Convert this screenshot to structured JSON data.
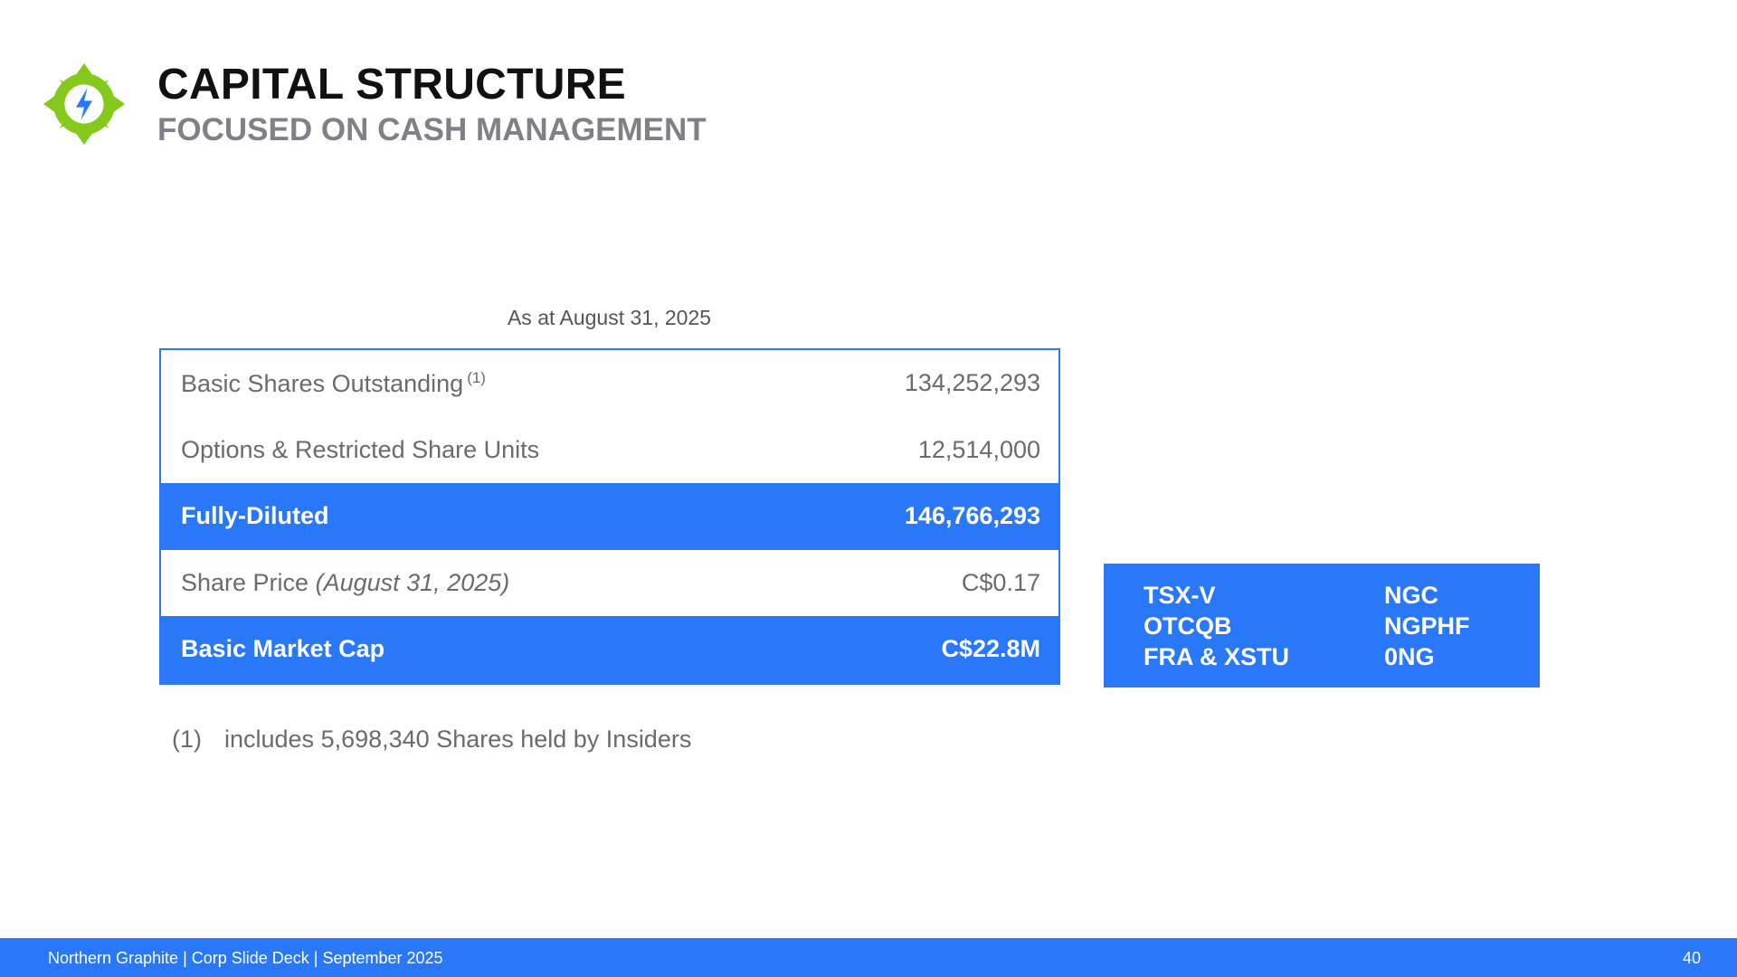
{
  "header": {
    "title": "CAPITAL STRUCTURE",
    "subtitle": "FOCUSED ON CASH MANAGEMENT",
    "logo_icon": "compass-lightning-logo",
    "accent_color": "#2a78fa",
    "logo_color": "#84c91c"
  },
  "table": {
    "caption": "As at August 31, 2025",
    "rows": [
      {
        "label": "Basic Shares Outstanding",
        "note": "(1)",
        "value": "134,252,293"
      },
      {
        "label": "Options & Restricted Share Units",
        "value": "12,514,000"
      },
      {
        "label": "Fully-Diluted",
        "value": "146,766,293"
      },
      {
        "label": "Share Price",
        "label_date": "(August 31, 2025)",
        "value": "C$0.17"
      },
      {
        "label": "Basic Market Cap",
        "value": "C$22.8M"
      }
    ]
  },
  "tickers": [
    {
      "exchange": "TSX-V",
      "symbol": "NGC"
    },
    {
      "exchange": "OTCQB",
      "symbol": "NGPHF"
    },
    {
      "exchange": "FRA & XSTU",
      "symbol": "0NG"
    }
  ],
  "footnote": {
    "number": "(1)",
    "text": "includes 5,698,340 Shares held by Insiders"
  },
  "footer": {
    "text": "Northern Graphite | Corp Slide Deck | September 2025",
    "page": "40"
  }
}
